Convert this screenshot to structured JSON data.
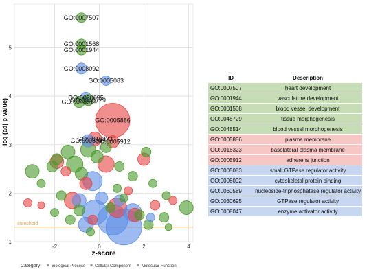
{
  "chart_data": {
    "type": "scatter",
    "xlabel": "z-score",
    "ylabel": "-log (adj p-value)",
    "xlim": [
      -3.8,
      4.2
    ],
    "ylim": [
      1.0,
      5.9
    ],
    "x_ticks": [
      -2,
      0,
      2,
      4
    ],
    "y_ticks": [
      1,
      2,
      3,
      4,
      5
    ],
    "grid": true,
    "threshold": {
      "label": "Threshold",
      "y": 1.3,
      "color": "#f2c27a"
    },
    "legend": {
      "title": "Category",
      "position": "bottom",
      "entries": [
        "Biological Process",
        "Cellular Component",
        "Molecular Function"
      ]
    },
    "colors": {
      "Biological Process": "#4a9a2a",
      "Cellular Component": "#e84545",
      "Molecular Function": "#5b8ee6"
    },
    "labeled_points": [
      {
        "label": "GO:0007507",
        "x": -0.8,
        "y": 5.62,
        "size": 7,
        "category": "Biological Process"
      },
      {
        "label": "GO:0001568",
        "x": -0.8,
        "y": 5.08,
        "size": 7,
        "category": "Biological Process"
      },
      {
        "label": "GO:0001944",
        "x": -0.8,
        "y": 4.95,
        "size": 7,
        "category": "Biological Process"
      },
      {
        "label": "GO:0008092",
        "x": -0.8,
        "y": 4.57,
        "size": 8,
        "category": "Molecular Function"
      },
      {
        "label": "GO:0005083",
        "x": 0.3,
        "y": 4.32,
        "size": 7,
        "category": "Molecular Function"
      },
      {
        "label": "GO:0030695",
        "x": -0.6,
        "y": 3.97,
        "size": 8,
        "category": "Molecular Function"
      },
      {
        "label": "GO:0048729",
        "x": -0.5,
        "y": 3.92,
        "size": 8,
        "category": "Biological Process"
      },
      {
        "label": "GO:0048514",
        "x": -0.9,
        "y": 3.88,
        "size": 8,
        "category": "Biological Process"
      },
      {
        "label": "GO:0005886",
        "x": 0.6,
        "y": 3.5,
        "size": 25,
        "category": "Cellular Component"
      },
      {
        "label": "GO:0016323",
        "x": -0.2,
        "y": 3.12,
        "size": 10,
        "category": "Cellular Component"
      },
      {
        "label": "GO:0008047",
        "x": -0.5,
        "y": 3.08,
        "size": 9,
        "category": "Molecular Function"
      },
      {
        "label": "GO:0005912",
        "x": 0.6,
        "y": 3.06,
        "size": 9,
        "category": "Cellular Component"
      }
    ],
    "points": [
      {
        "x": -3.0,
        "y": 2.45,
        "size": 10,
        "category": "Biological Process"
      },
      {
        "x": -2.1,
        "y": 2.55,
        "size": 8,
        "category": "Biological Process"
      },
      {
        "x": -1.9,
        "y": 2.7,
        "size": 8,
        "category": "Biological Process"
      },
      {
        "x": -1.4,
        "y": 2.85,
        "size": 10,
        "category": "Biological Process"
      },
      {
        "x": -1.1,
        "y": 2.6,
        "size": 12,
        "category": "Biological Process"
      },
      {
        "x": -0.8,
        "y": 2.4,
        "size": 9,
        "category": "Biological Process"
      },
      {
        "x": -0.5,
        "y": 2.9,
        "size": 11,
        "category": "Biological Process"
      },
      {
        "x": -0.1,
        "y": 2.75,
        "size": 9,
        "category": "Biological Process"
      },
      {
        "x": 0.3,
        "y": 2.95,
        "size": 8,
        "category": "Biological Process"
      },
      {
        "x": 0.9,
        "y": 2.55,
        "size": 7,
        "category": "Biological Process"
      },
      {
        "x": 1.5,
        "y": 2.35,
        "size": 7,
        "category": "Biological Process"
      },
      {
        "x": 2.1,
        "y": 2.85,
        "size": 7,
        "category": "Biological Process"
      },
      {
        "x": 2.4,
        "y": 2.2,
        "size": 6,
        "category": "Biological Process"
      },
      {
        "x": 3.0,
        "y": 1.95,
        "size": 6,
        "category": "Biological Process"
      },
      {
        "x": 3.9,
        "y": 1.7,
        "size": 10,
        "category": "Biological Process"
      },
      {
        "x": 2.9,
        "y": 1.5,
        "size": 7,
        "category": "Biological Process"
      },
      {
        "x": 3.1,
        "y": 1.3,
        "size": 5,
        "category": "Biological Process"
      },
      {
        "x": 2.2,
        "y": 1.35,
        "size": 7,
        "category": "Biological Process"
      },
      {
        "x": 1.8,
        "y": 1.55,
        "size": 7,
        "category": "Biological Process"
      },
      {
        "x": -1.7,
        "y": 1.95,
        "size": 7,
        "category": "Biological Process"
      },
      {
        "x": -2.0,
        "y": 1.6,
        "size": 6,
        "category": "Biological Process"
      },
      {
        "x": -1.3,
        "y": 1.45,
        "size": 7,
        "category": "Biological Process"
      },
      {
        "x": -0.9,
        "y": 1.65,
        "size": 8,
        "category": "Biological Process"
      },
      {
        "x": -0.4,
        "y": 1.2,
        "size": 6,
        "category": "Biological Process"
      },
      {
        "x": 0.5,
        "y": 1.7,
        "size": 7,
        "category": "Biological Process"
      },
      {
        "x": 1.1,
        "y": 1.9,
        "size": 6,
        "category": "Biological Process"
      },
      {
        "x": -2.6,
        "y": 2.2,
        "size": 6,
        "category": "Biological Process"
      },
      {
        "x": 0.8,
        "y": 2.1,
        "size": 6,
        "category": "Biological Process"
      },
      {
        "x": -3.2,
        "y": 1.8,
        "size": 6,
        "category": "Cellular Component"
      },
      {
        "x": -2.6,
        "y": 1.75,
        "size": 5,
        "category": "Cellular Component"
      },
      {
        "x": -1.9,
        "y": 2.65,
        "size": 10,
        "category": "Cellular Component"
      },
      {
        "x": -1.2,
        "y": 1.85,
        "size": 12,
        "category": "Cellular Component"
      },
      {
        "x": -0.6,
        "y": 2.2,
        "size": 9,
        "category": "Cellular Component"
      },
      {
        "x": 0.3,
        "y": 2.6,
        "size": 12,
        "category": "Cellular Component"
      },
      {
        "x": 0.8,
        "y": 1.7,
        "size": 14,
        "category": "Cellular Component"
      },
      {
        "x": 1.6,
        "y": 1.55,
        "size": 10,
        "category": "Cellular Component"
      },
      {
        "x": 2.0,
        "y": 2.7,
        "size": 9,
        "category": "Cellular Component"
      },
      {
        "x": 2.5,
        "y": 1.75,
        "size": 7,
        "category": "Cellular Component"
      },
      {
        "x": 3.3,
        "y": 1.85,
        "size": 6,
        "category": "Cellular Component"
      },
      {
        "x": -0.3,
        "y": 1.45,
        "size": 7,
        "category": "Cellular Component"
      },
      {
        "x": 1.3,
        "y": 2.05,
        "size": 6,
        "category": "Cellular Component"
      },
      {
        "x": -1.5,
        "y": 2.45,
        "size": 7,
        "category": "Cellular Component"
      },
      {
        "x": -0.3,
        "y": 2.25,
        "size": 14,
        "category": "Molecular Function"
      },
      {
        "x": -0.9,
        "y": 1.85,
        "size": 10,
        "category": "Molecular Function"
      },
      {
        "x": -0.2,
        "y": 1.6,
        "size": 18,
        "category": "Molecular Function"
      },
      {
        "x": 0.6,
        "y": 1.45,
        "size": 22,
        "category": "Molecular Function"
      },
      {
        "x": 1.1,
        "y": 1.3,
        "size": 26,
        "category": "Molecular Function"
      },
      {
        "x": 1.5,
        "y": 1.6,
        "size": 13,
        "category": "Molecular Function"
      },
      {
        "x": -0.6,
        "y": 1.35,
        "size": 11,
        "category": "Molecular Function"
      },
      {
        "x": 0.1,
        "y": 1.9,
        "size": 9,
        "category": "Molecular Function"
      },
      {
        "x": 0.9,
        "y": 1.85,
        "size": 8,
        "category": "Molecular Function"
      },
      {
        "x": 2.3,
        "y": 1.5,
        "size": 6,
        "category": "Molecular Function"
      }
    ]
  },
  "table": {
    "headers": [
      "ID",
      "Description"
    ],
    "rows": [
      {
        "id": "GO:0007507",
        "description": "heart development",
        "category": "bp"
      },
      {
        "id": "GO:0001944",
        "description": "vasculature development",
        "category": "bp"
      },
      {
        "id": "GO:0001568",
        "description": "blood vessel development",
        "category": "bp"
      },
      {
        "id": "GO:0048729",
        "description": "tissue morphogenesis",
        "category": "bp"
      },
      {
        "id": "GO:0048514",
        "description": "blood vessel morphogenesis",
        "category": "bp"
      },
      {
        "id": "GO:0005886",
        "description": "plasma membrane",
        "category": "cc"
      },
      {
        "id": "GO:0016323",
        "description": "basolateral plasma membrane",
        "category": "cc"
      },
      {
        "id": "GO:0005912",
        "description": "adherens junction",
        "category": "cc"
      },
      {
        "id": "GO:0005083",
        "description": "small GTPase regulator activity",
        "category": "mf"
      },
      {
        "id": "GO:0008092",
        "description": "cytoskeletal protein binding",
        "category": "mf"
      },
      {
        "id": "GO:0060589",
        "description": "nucleoside-triphosphatase regulator activity",
        "category": "mf"
      },
      {
        "id": "GO:0030695",
        "description": "GTPase regulator activity",
        "category": "mf"
      },
      {
        "id": "GO:0008047",
        "description": "enzyme activator activity",
        "category": "mf"
      }
    ]
  }
}
